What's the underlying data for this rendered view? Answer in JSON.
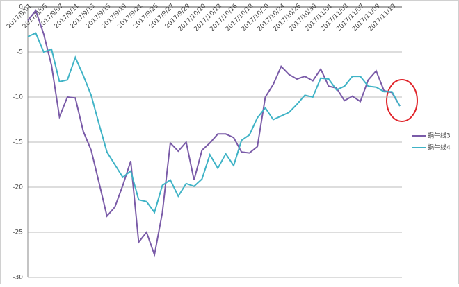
{
  "chart_data": {
    "type": "line",
    "categories": [
      "2017/9/01",
      null,
      "2017/9/05",
      null,
      "2017/9/07",
      null,
      "2017/9/11",
      null,
      "2017/9/13",
      null,
      "2017/9/15",
      null,
      "2017/9/19",
      null,
      "2017/9/21",
      null,
      "2017/9/25",
      null,
      "2017/9/27",
      null,
      "2017/9/29",
      null,
      "2017/10/10",
      null,
      "2017/10/12",
      null,
      "2017/10/16",
      null,
      "2017/10/18",
      null,
      "2017/10/20",
      null,
      "2017/10/24",
      null,
      "2017/10/26",
      null,
      "2017/10/30",
      null,
      "2017/11/01",
      null,
      "2017/11/03",
      null,
      "2017/11/07",
      null,
      "2017/11/09",
      null,
      "2017/11/13",
      null
    ],
    "series": [
      {
        "name": "蜗牛线3",
        "color": "#7a5ba8",
        "values": [
          -1.5,
          -0.4,
          -3,
          -6.5,
          -12.2,
          -10,
          -10.1,
          -13.8,
          -15.9,
          -19.5,
          -23.2,
          -22.2,
          -19.8,
          -17.1,
          -26.1,
          -25,
          -27.5,
          -22.8,
          -15.1,
          -16,
          -15,
          -19.2,
          -15.9,
          -15.1,
          -14.1,
          -14.1,
          -14.5,
          -16.1,
          -16.2,
          -15.5,
          -10,
          -8.6,
          -6.6,
          -7.5,
          -8,
          -7.7,
          -8.2,
          -6.9,
          -8.8,
          -9,
          -10.4,
          -9.9,
          -10.5,
          -8.1,
          -7.1,
          -9.3,
          -9.5,
          -11
        ]
      },
      {
        "name": "蜗牛线4",
        "color": "#3fb3c6",
        "values": [
          -3.3,
          -2.9,
          -5,
          -4.7,
          -8.3,
          -8.1,
          -5.6,
          -7.6,
          -9.8,
          -13,
          -16.1,
          -17.5,
          -18.9,
          -18.2,
          -21.4,
          -21.6,
          -22.8,
          -19.8,
          -19.2,
          -21,
          -19.6,
          -19.9,
          -19.1,
          -16.4,
          -17.9,
          -16.3,
          -17.6,
          -14.8,
          -14.2,
          -12.3,
          -11.2,
          -12.5,
          -12.1,
          -11.7,
          -10.8,
          -9.8,
          -10,
          -7.9,
          -8,
          -9.2,
          -8.8,
          -7.7,
          -7.7,
          -8.8,
          -8.9,
          -9.4,
          -9.4,
          -11
        ]
      }
    ],
    "ylim": [
      -30,
      0
    ],
    "yticks": [
      0,
      -5,
      -10,
      -15,
      -20,
      -25,
      -30
    ],
    "grid": true,
    "legend": "right"
  }
}
